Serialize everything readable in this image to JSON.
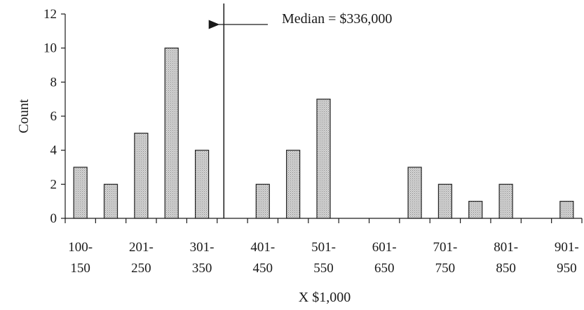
{
  "chart_data": {
    "type": "bar",
    "title": "",
    "xlabel": "X $1,000",
    "ylabel": "Count",
    "ylim": [
      0,
      12
    ],
    "y_ticks": [
      0,
      2,
      4,
      6,
      8,
      10,
      12
    ],
    "grid": false,
    "categories": [
      "100-150",
      "151-200",
      "201-250",
      "251-300",
      "301-350",
      "351-400",
      "401-450",
      "451-500",
      "501-550",
      "551-600",
      "601-650",
      "651-700",
      "701-750",
      "751-800",
      "801-850",
      "851-900",
      "901-950"
    ],
    "tick_labels": [
      {
        "line1": "100-",
        "line2": "150"
      },
      {
        "line1": "201-",
        "line2": "250"
      },
      {
        "line1": "301-",
        "line2": "350"
      },
      {
        "line1": "401-",
        "line2": "450"
      },
      {
        "line1": "501-",
        "line2": "550"
      },
      {
        "line1": "601-",
        "line2": "650"
      },
      {
        "line1": "701-",
        "line2": "750"
      },
      {
        "line1": "801-",
        "line2": "850"
      },
      {
        "line1": "901-",
        "line2": "950"
      }
    ],
    "values": [
      3,
      2,
      5,
      10,
      4,
      0,
      2,
      4,
      7,
      0,
      0,
      3,
      2,
      1,
      2,
      0,
      1
    ],
    "bar_fill": "#c8c8c8",
    "bar_stroke": "#222222",
    "median_value": 336,
    "annotation": "Median = $336,000"
  }
}
